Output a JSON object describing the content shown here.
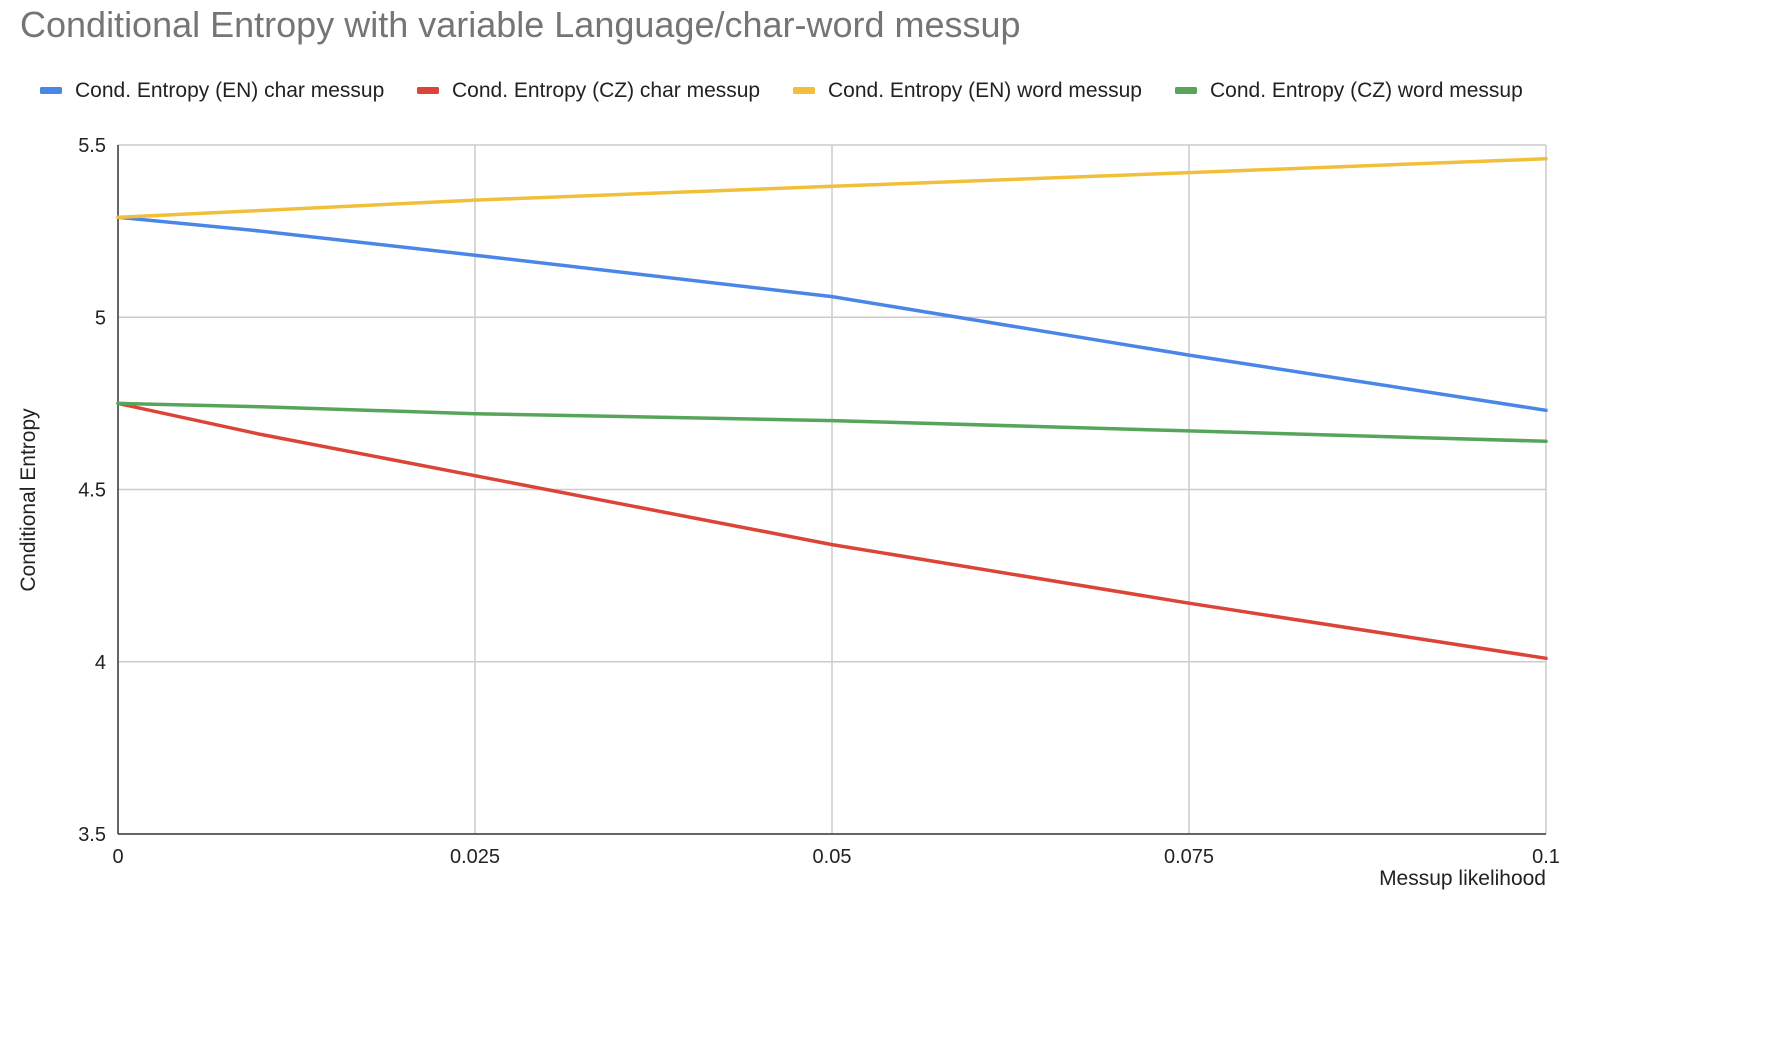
{
  "chart_data": {
    "type": "line",
    "title": "Conditional Entropy with variable Language/char-word messup",
    "xlabel": "Messup likelihood",
    "ylabel": "Conditional Entropy",
    "x": [
      0,
      0.05,
      0.1
    ],
    "xlim": [
      0,
      0.1
    ],
    "ylim": [
      3.5,
      5.5
    ],
    "x_ticks": [
      0,
      0.025,
      0.05,
      0.075,
      0.1
    ],
    "x_tick_labels": [
      "0",
      "0.025",
      "0.05",
      "0.075",
      "0.1"
    ],
    "y_ticks": [
      3.5,
      4,
      4.5,
      5,
      5.5
    ],
    "y_tick_labels": [
      "3.5",
      "4",
      "4.5",
      "5",
      "5.5"
    ],
    "grid": true,
    "legend_position": "top",
    "series": [
      {
        "name": "Cond. Entropy (EN) char messup",
        "color": "#4a86e8",
        "x": [
          0,
          0.01,
          0.025,
          0.05,
          0.075,
          0.1
        ],
        "values": [
          5.29,
          5.25,
          5.18,
          5.06,
          4.89,
          4.73
        ]
      },
      {
        "name": "Cond. Entropy (CZ) char messup",
        "color": "#db4437",
        "x": [
          0,
          0.01,
          0.025,
          0.05,
          0.075,
          0.1
        ],
        "values": [
          4.75,
          4.66,
          4.54,
          4.34,
          4.17,
          4.01
        ]
      },
      {
        "name": "Cond. Entropy (EN) word messup",
        "color": "#f1bf39",
        "x": [
          0,
          0.01,
          0.025,
          0.05,
          0.075,
          0.1
        ],
        "values": [
          5.29,
          5.31,
          5.34,
          5.38,
          5.42,
          5.46
        ]
      },
      {
        "name": "Cond. Entropy (CZ) word messup",
        "color": "#57a55a",
        "x": [
          0,
          0.01,
          0.025,
          0.05,
          0.075,
          0.1
        ],
        "values": [
          4.75,
          4.74,
          4.72,
          4.7,
          4.67,
          4.64
        ]
      }
    ]
  }
}
